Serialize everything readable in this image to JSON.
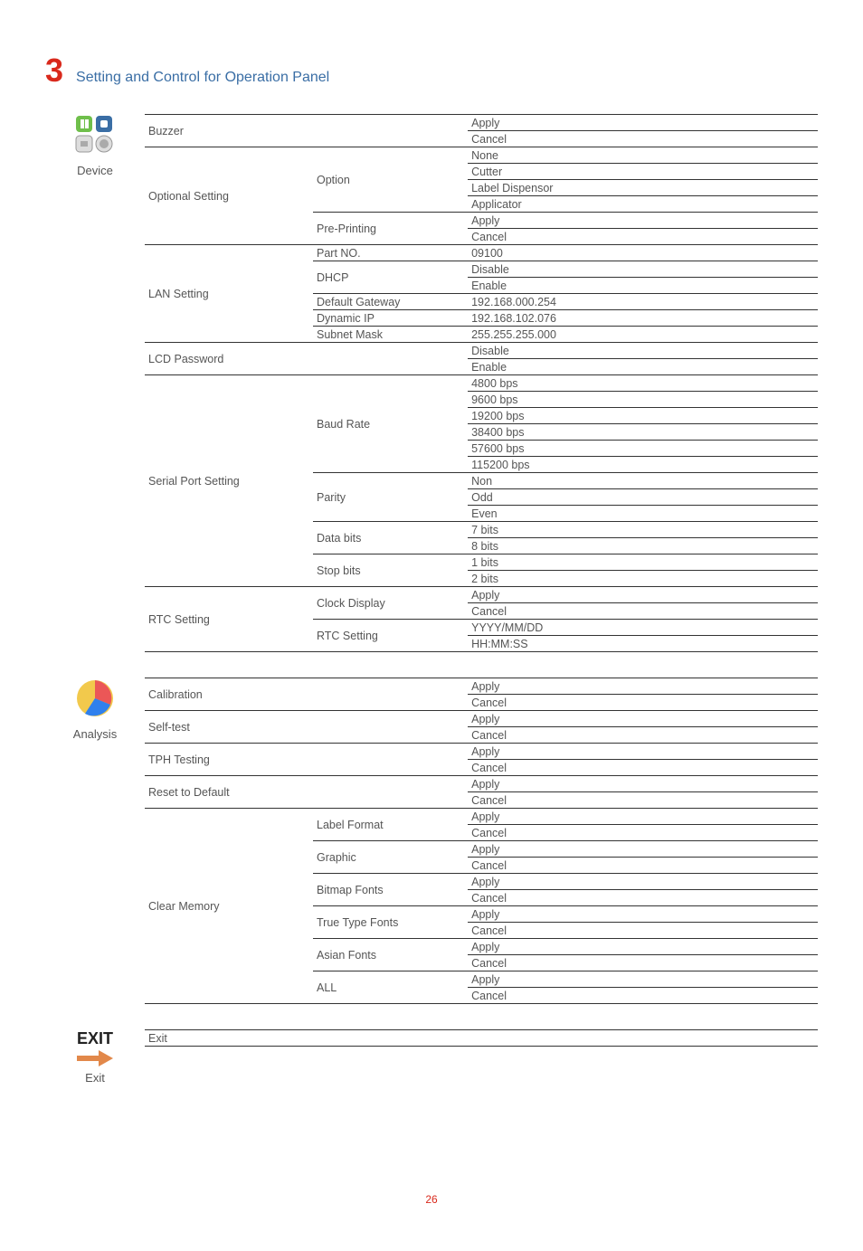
{
  "chapter": {
    "number": "3",
    "title": "Setting and Control for Operation Panel"
  },
  "icons": {
    "device": {
      "label": "Device"
    },
    "analysis": {
      "label": "Analysis"
    },
    "exit": {
      "label": "Exit"
    }
  },
  "device_table": [
    {
      "group": "Buzzer",
      "rowspan_g": 2,
      "sub": "",
      "rowspan_s": 0,
      "val": "Apply"
    },
    {
      "val": "Cancel"
    },
    {
      "group": "Optional Setting",
      "rowspan_g": 6,
      "sub": "Option",
      "rowspan_s": 4,
      "val": "None"
    },
    {
      "val": "Cutter"
    },
    {
      "val": "Label Dispensor"
    },
    {
      "val": "Applicator"
    },
    {
      "sub": "Pre-Printing",
      "rowspan_s": 2,
      "val": "Apply"
    },
    {
      "val": "Cancel"
    },
    {
      "group": "LAN Setting",
      "rowspan_g": 6,
      "sub": "Part NO.",
      "rowspan_s": 1,
      "val": "09100"
    },
    {
      "sub": "DHCP",
      "rowspan_s": 2,
      "val": "Disable"
    },
    {
      "val": "Enable"
    },
    {
      "sub": "Default Gateway",
      "rowspan_s": 1,
      "val": "192.168.000.254"
    },
    {
      "sub": "Dynamic IP",
      "rowspan_s": 1,
      "val": "192.168.102.076"
    },
    {
      "sub": "Subnet Mask",
      "rowspan_s": 1,
      "val": "255.255.255.000"
    },
    {
      "group": "LCD Password",
      "rowspan_g": 2,
      "sub": "",
      "rowspan_s": 0,
      "val": "Disable"
    },
    {
      "val": "Enable"
    },
    {
      "group": "Serial Port Setting",
      "rowspan_g": 13,
      "sub": "Baud Rate",
      "rowspan_s": 6,
      "val": "4800 bps"
    },
    {
      "val": "9600 bps"
    },
    {
      "val": "19200 bps"
    },
    {
      "val": "38400 bps"
    },
    {
      "val": "57600 bps"
    },
    {
      "val": "115200 bps"
    },
    {
      "sub": "Parity",
      "rowspan_s": 3,
      "val": "Non"
    },
    {
      "val": "Odd"
    },
    {
      "val": "Even"
    },
    {
      "sub": "Data bits",
      "rowspan_s": 2,
      "val": "7 bits"
    },
    {
      "val": "8 bits"
    },
    {
      "sub": "Stop bits",
      "rowspan_s": 2,
      "val": "1 bits"
    },
    {
      "val": "2 bits"
    },
    {
      "group": "RTC Setting",
      "rowspan_g": 4,
      "sub": "Clock Display",
      "rowspan_s": 2,
      "val": "Apply"
    },
    {
      "val": "Cancel"
    },
    {
      "sub": "RTC Setting",
      "rowspan_s": 2,
      "val": "YYYY/MM/DD"
    },
    {
      "val": "HH:MM:SS"
    }
  ],
  "analysis_table": [
    {
      "group": "Calibration",
      "rowspan_g": 2,
      "sub": "",
      "rowspan_s": 0,
      "val": "Apply"
    },
    {
      "val": "Cancel"
    },
    {
      "group": "Self-test",
      "rowspan_g": 2,
      "sub": "",
      "rowspan_s": 0,
      "val": "Apply"
    },
    {
      "val": "Cancel"
    },
    {
      "group": "TPH Testing",
      "rowspan_g": 2,
      "sub": "",
      "rowspan_s": 0,
      "val": "Apply"
    },
    {
      "val": "Cancel"
    },
    {
      "group": "Reset to Default",
      "rowspan_g": 2,
      "sub": "",
      "rowspan_s": 0,
      "val": "Apply"
    },
    {
      "val": "Cancel"
    },
    {
      "group": "Clear Memory",
      "rowspan_g": 12,
      "sub": "Label Format",
      "rowspan_s": 2,
      "val": "Apply"
    },
    {
      "val": "Cancel"
    },
    {
      "sub": "Graphic",
      "rowspan_s": 2,
      "val": "Apply"
    },
    {
      "val": "Cancel"
    },
    {
      "sub": "Bitmap Fonts",
      "rowspan_s": 2,
      "val": "Apply"
    },
    {
      "val": "Cancel"
    },
    {
      "sub": "True Type Fonts",
      "rowspan_s": 2,
      "val": "Apply"
    },
    {
      "val": "Cancel"
    },
    {
      "sub": "Asian Fonts",
      "rowspan_s": 2,
      "val": "Apply"
    },
    {
      "val": "Cancel"
    },
    {
      "sub": "ALL",
      "rowspan_s": 2,
      "val": "Apply"
    },
    {
      "val": "Cancel"
    }
  ],
  "exit_table": [
    {
      "val": "Exit"
    }
  ],
  "page_number": "26"
}
